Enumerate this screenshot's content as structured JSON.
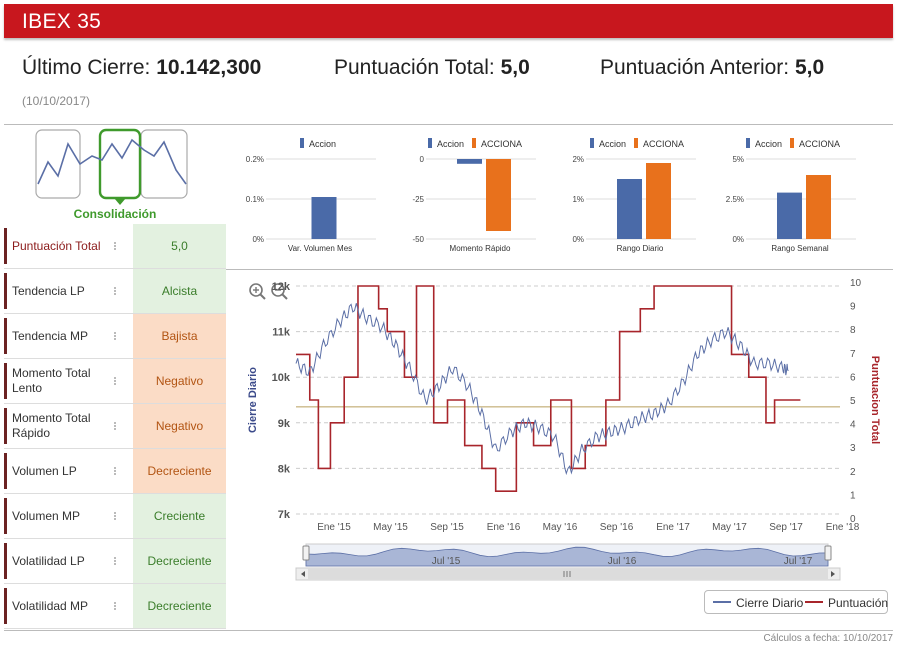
{
  "header": {
    "title": "IBEX 35"
  },
  "metrics": {
    "last_close_label": "Último Cierre:",
    "last_close_value": "10.142,300",
    "total_score_label": "Puntuación Total:",
    "total_score_value": "5,0",
    "previous_score_label": "Puntuación Anterior:",
    "previous_score_value": "5,0",
    "date": "(10/10/2017)"
  },
  "consolidation": {
    "label": "Consolidación",
    "accent": "#3f9a2c"
  },
  "indicators": [
    {
      "label": "Puntuación Total",
      "value": "5,0",
      "tone": "green"
    },
    {
      "label": "Tendencia LP",
      "value": "Alcista",
      "tone": "green"
    },
    {
      "label": "Tendencia MP",
      "value": "Bajista",
      "tone": "orange"
    },
    {
      "label": "Momento Total Lento",
      "value": "Negativo",
      "tone": "orange"
    },
    {
      "label": "Momento Total Rápido",
      "value": "Negativo",
      "tone": "orange"
    },
    {
      "label": "Volumen LP",
      "value": "Decreciente",
      "tone": "orange"
    },
    {
      "label": "Volumen MP",
      "value": "Creciente",
      "tone": "green"
    },
    {
      "label": "Volatilidad LP",
      "value": "Decreciente",
      "tone": "green"
    },
    {
      "label": "Volatilidad MP",
      "value": "Decreciente",
      "tone": "green"
    }
  ],
  "chart_data": [
    {
      "type": "bar",
      "title": "Var. Volumen Mes",
      "legend": [
        "Accion"
      ],
      "series": [
        {
          "name": "Accion",
          "values": [
            0.105
          ],
          "color": "#4a6aa8"
        }
      ],
      "ticks": [
        "0.2%",
        "0.1%",
        "0%"
      ],
      "ylim": [
        0,
        0.2
      ]
    },
    {
      "type": "bar",
      "title": "Momento Rápido",
      "legend": [
        "Accion",
        "ACCIONA"
      ],
      "series": [
        {
          "name": "Accion",
          "values": [
            -3
          ],
          "color": "#4a6aa8"
        },
        {
          "name": "ACCIONA",
          "values": [
            -45
          ],
          "color": "#e8711c"
        }
      ],
      "ticks": [
        "0",
        "-25",
        "-50"
      ],
      "ylim": [
        -50,
        0
      ]
    },
    {
      "type": "bar",
      "title": "Rango Diario",
      "legend": [
        "Accion",
        "ACCIONA"
      ],
      "series": [
        {
          "name": "Accion",
          "values": [
            1.5
          ],
          "color": "#4a6aa8"
        },
        {
          "name": "ACCIONA",
          "values": [
            1.9
          ],
          "color": "#e8711c"
        }
      ],
      "ticks": [
        "2%",
        "1%",
        "0%"
      ],
      "ylim": [
        0,
        2
      ]
    },
    {
      "type": "bar",
      "title": "Rango Semanal",
      "legend": [
        "Accion",
        "ACCIONA"
      ],
      "series": [
        {
          "name": "Accion",
          "values": [
            2.9
          ],
          "color": "#4a6aa8"
        },
        {
          "name": "ACCIONA",
          "values": [
            4.0
          ],
          "color": "#e8711c"
        }
      ],
      "ticks": [
        "5%",
        "2.5%",
        "0%"
      ],
      "ylim": [
        0,
        5
      ]
    },
    {
      "type": "line",
      "xlabel": "",
      "ylabel": "Cierre Diario",
      "y2label": "Puntuacion Total",
      "x_ticks": [
        "Ene '15",
        "May '15",
        "Sep '15",
        "Ene '16",
        "May '16",
        "Sep '16",
        "Ene '17",
        "May '17",
        "Sep '17",
        "Ene '18"
      ],
      "y_ticks": [
        "12k",
        "11k",
        "10k",
        "9k",
        "8k",
        "7k"
      ],
      "y2_ticks": [
        "10",
        "9",
        "8",
        "7",
        "6",
        "5",
        "4",
        "3",
        "2",
        "1",
        "0"
      ],
      "ylim": [
        7000,
        12000
      ],
      "y2lim": [
        0,
        10
      ],
      "reference_y2": 4.7,
      "navigator_labels": [
        "Jul '15",
        "Jul '16",
        "Jul '17"
      ],
      "series": [
        {
          "name": "Cierre Diario",
          "color": "#5b6fa6",
          "x": [
            2014.92,
            2015.0,
            2015.08,
            2015.17,
            2015.25,
            2015.33,
            2015.42,
            2015.5,
            2015.58,
            2015.67,
            2015.75,
            2015.83,
            2015.92,
            2016.0,
            2016.08,
            2016.17,
            2016.25,
            2016.33,
            2016.42,
            2016.5,
            2016.58,
            2016.67,
            2016.75,
            2016.83,
            2016.92,
            2017.0,
            2017.08,
            2017.17,
            2017.25,
            2017.33,
            2017.42,
            2017.5,
            2017.58,
            2017.67,
            2017.75,
            2017.78
          ],
          "y": [
            10300,
            10100,
            10700,
            11200,
            11550,
            11300,
            11100,
            10700,
            10200,
            9500,
            9800,
            10200,
            9800,
            9200,
            8400,
            8800,
            9000,
            8900,
            8700,
            7900,
            8400,
            8700,
            8800,
            8900,
            9100,
            9200,
            9400,
            9900,
            10500,
            10800,
            11000,
            10700,
            10300,
            10300,
            10200,
            10140
          ]
        },
        {
          "name": "Puntuación",
          "color": "#a8252b",
          "x": [
            2014.92,
            2015.0,
            2015.05,
            2015.12,
            2015.2,
            2015.28,
            2015.4,
            2015.45,
            2015.55,
            2015.62,
            2015.72,
            2015.8,
            2015.9,
            2016.0,
            2016.08,
            2016.2,
            2016.3,
            2016.4,
            2016.52,
            2016.6,
            2016.72,
            2016.8,
            2016.92,
            2017.0,
            2017.1,
            2017.25,
            2017.35,
            2017.45,
            2017.55,
            2017.65,
            2017.7,
            2017.78
          ],
          "y": [
            7,
            5,
            2,
            4,
            6,
            10,
            9,
            8,
            6,
            10,
            4,
            5,
            3,
            2,
            1,
            4,
            3,
            5,
            2,
            3,
            5,
            8,
            9,
            10,
            10,
            10,
            10,
            7,
            6,
            4,
            5,
            5
          ]
        }
      ],
      "legend": [
        "Cierre Diario",
        "Puntuación"
      ]
    }
  ],
  "footer": {
    "text": "Cálculos a fecha: 10/10/2017"
  }
}
